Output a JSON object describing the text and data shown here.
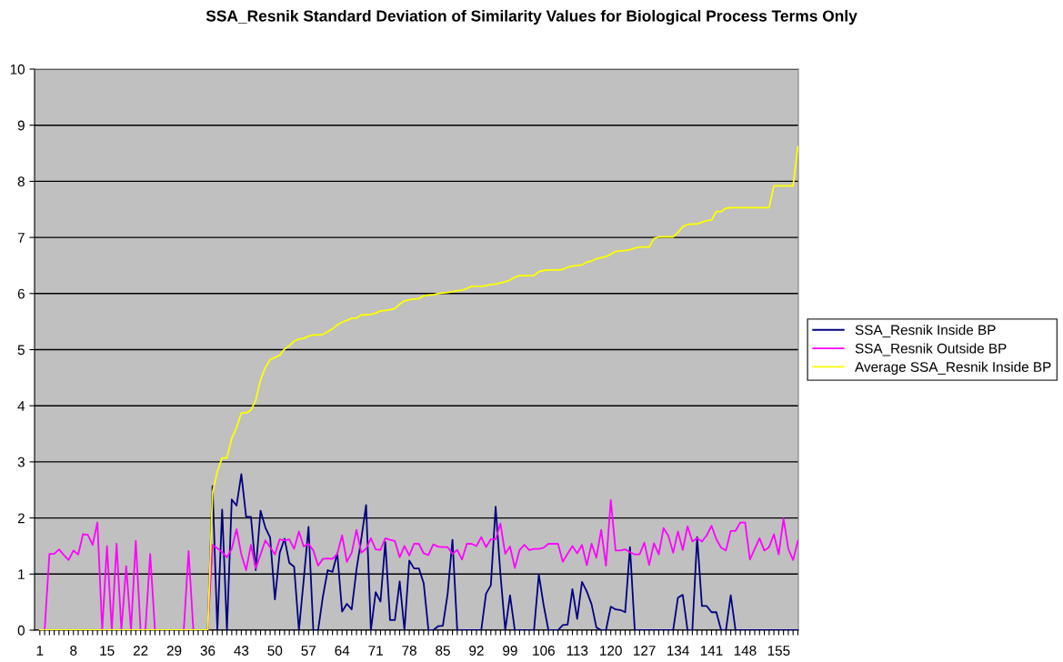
{
  "chart_data": {
    "type": "line",
    "title": "SSA_Resnik Standard Deviation of Similarity Values for Biological Process Terms Only",
    "categories": [
      "1",
      null,
      null,
      null,
      null,
      null,
      null,
      "8",
      null,
      null,
      null,
      null,
      null,
      null,
      "15",
      null,
      null,
      null,
      null,
      null,
      null,
      "22",
      null,
      null,
      null,
      null,
      null,
      null,
      "29",
      null,
      null,
      null,
      null,
      null,
      null,
      "36",
      null,
      null,
      null,
      null,
      null,
      null,
      "43",
      null,
      null,
      null,
      null,
      null,
      null,
      "50",
      null,
      null,
      null,
      null,
      null,
      null,
      "57",
      null,
      null,
      null,
      null,
      null,
      null,
      "64",
      null,
      null,
      null,
      null,
      null,
      null,
      "71",
      null,
      null,
      null,
      null,
      null,
      null,
      "78",
      null,
      null,
      null,
      null,
      null,
      null,
      "85",
      null,
      null,
      null,
      null,
      null,
      null,
      "92",
      null,
      null,
      null,
      null,
      null,
      null,
      "99",
      null,
      null,
      null,
      null,
      null,
      null,
      "106",
      null,
      null,
      null,
      null,
      null,
      null,
      "113",
      null,
      null,
      null,
      null,
      null,
      null,
      "120",
      null,
      null,
      null,
      null,
      null,
      null,
      "127",
      null,
      null,
      null,
      null,
      null,
      null,
      "134",
      null,
      null,
      null,
      null,
      null,
      null,
      "141",
      null,
      null,
      null,
      null,
      null,
      null,
      "148",
      null,
      null,
      null,
      null,
      null,
      null,
      "155",
      null,
      null,
      null,
      null
    ],
    "series": [
      {
        "name": "SSA_Resnik Inside BP",
        "color": "#000080",
        "values": [
          null,
          null,
          null,
          null,
          null,
          null,
          null,
          null,
          null,
          null,
          null,
          null,
          null,
          null,
          null,
          null,
          null,
          null,
          null,
          null,
          null,
          null,
          null,
          null,
          null,
          null,
          null,
          null,
          null,
          null,
          null,
          null,
          null,
          null,
          null,
          0,
          2.57,
          0,
          2.15,
          0,
          2.33,
          2.22,
          2.78,
          2.02,
          2.02,
          1.07,
          2.13,
          1.83,
          1.65,
          0.55,
          1.38,
          1.63,
          1.2,
          1.13,
          0,
          0.9,
          1.84,
          0,
          0,
          0.6,
          1.07,
          1.04,
          1.37,
          0.33,
          0.47,
          0.37,
          1.08,
          1.63,
          2.23,
          0,
          0.68,
          0.51,
          1.57,
          0.18,
          0.18,
          0.87,
          0,
          1.24,
          1.1,
          1.1,
          0.84,
          0,
          0,
          0.07,
          0.08,
          0.65,
          1.61,
          0,
          0,
          0,
          0,
          0,
          0,
          0.65,
          0.8,
          2.2,
          1.0,
          0,
          0.62,
          0,
          0,
          0,
          0,
          0,
          0.99,
          0.45,
          0,
          0,
          0,
          0.09,
          0.1,
          0.73,
          0.2,
          0.86,
          0.69,
          0.46,
          0.05,
          0,
          0,
          0.42,
          0.37,
          0.36,
          0.32,
          1.48,
          0,
          0,
          0,
          0,
          0,
          0,
          0,
          0,
          0,
          0.58,
          0.63,
          0,
          0,
          1.66,
          0.43,
          0.43,
          0.32,
          0.32,
          0,
          0,
          0.62,
          0,
          0,
          0,
          0,
          0,
          0,
          0,
          0,
          0,
          0,
          0,
          0,
          0,
          0
        ]
      },
      {
        "name": "SSA_Resnik Outside BP",
        "color": "#ff00ff",
        "values": [
          0,
          0,
          1.36,
          1.36,
          1.44,
          1.34,
          1.25,
          1.42,
          1.35,
          1.71,
          1.7,
          1.52,
          1.92,
          0,
          1.5,
          0,
          1.54,
          0,
          1.14,
          0,
          1.59,
          0,
          0,
          1.36,
          0,
          0,
          0,
          0,
          0,
          0,
          0,
          1.41,
          0,
          0,
          0,
          0,
          1.52,
          1.46,
          1.39,
          1.3,
          1.45,
          1.8,
          1.35,
          1.07,
          1.52,
          1.1,
          1.35,
          1.6,
          1.48,
          1.35,
          1.62,
          1.6,
          1.62,
          1.45,
          1.76,
          1.49,
          1.54,
          1.42,
          1.15,
          1.27,
          1.28,
          1.27,
          1.36,
          1.69,
          1.22,
          1.38,
          1.79,
          1.38,
          1.45,
          1.64,
          1.44,
          1.43,
          1.64,
          1.61,
          1.59,
          1.3,
          1.5,
          1.33,
          1.54,
          1.54,
          1.37,
          1.34,
          1.53,
          1.49,
          1.48,
          1.48,
          1.36,
          1.43,
          1.26,
          1.54,
          1.54,
          1.5,
          1.66,
          1.48,
          1.62,
          1.62,
          1.9,
          1.36,
          1.49,
          1.11,
          1.43,
          1.52,
          1.43,
          1.45,
          1.45,
          1.47,
          1.54,
          1.54,
          1.54,
          1.22,
          1.36,
          1.5,
          1.37,
          1.52,
          1.16,
          1.54,
          1.29,
          1.79,
          1.15,
          2.32,
          1.42,
          1.42,
          1.44,
          1.39,
          1.35,
          1.35,
          1.56,
          1.16,
          1.55,
          1.35,
          1.82,
          1.68,
          1.38,
          1.76,
          1.43,
          1.85,
          1.58,
          1.64,
          1.58,
          1.69,
          1.86,
          1.62,
          1.47,
          1.42,
          1.77,
          1.77,
          1.92,
          1.92,
          1.26,
          1.45,
          1.64,
          1.42,
          1.48,
          1.71,
          1.35,
          1.99,
          1.45,
          1.25,
          1.59
        ]
      },
      {
        "name": "Average SSA_Resnik Inside BP",
        "color": "#ffff00",
        "values": [
          0,
          0,
          0,
          0,
          0,
          0,
          0,
          0,
          0,
          0,
          0,
          0,
          0,
          0,
          0,
          0,
          0,
          0,
          0,
          0,
          0,
          0,
          0,
          0,
          0,
          0,
          0,
          0,
          0,
          0,
          0,
          0,
          0,
          0,
          0,
          0,
          2.45,
          2.83,
          3.07,
          3.07,
          3.42,
          3.61,
          3.87,
          3.87,
          3.92,
          4.1,
          4.46,
          4.68,
          4.82,
          4.86,
          4.9,
          5.01,
          5.07,
          5.15,
          5.19,
          5.2,
          5.24,
          5.26,
          5.26,
          5.27,
          5.32,
          5.37,
          5.44,
          5.49,
          5.52,
          5.56,
          5.56,
          5.62,
          5.62,
          5.63,
          5.65,
          5.69,
          5.7,
          5.71,
          5.73,
          5.81,
          5.87,
          5.89,
          5.9,
          5.91,
          5.96,
          5.97,
          5.98,
          6.0,
          6.01,
          6.02,
          6.03,
          6.05,
          6.06,
          6.09,
          6.13,
          6.13,
          6.13,
          6.14,
          6.16,
          6.17,
          6.19,
          6.21,
          6.24,
          6.29,
          6.32,
          6.32,
          6.32,
          6.32,
          6.39,
          6.41,
          6.42,
          6.42,
          6.42,
          6.43,
          6.47,
          6.49,
          6.5,
          6.51,
          6.56,
          6.58,
          6.62,
          6.64,
          6.66,
          6.7,
          6.75,
          6.76,
          6.77,
          6.78,
          6.81,
          6.83,
          6.83,
          6.83,
          6.98,
          7.01,
          7.01,
          7.01,
          7.01,
          7.09,
          7.19,
          7.23,
          7.24,
          7.24,
          7.27,
          7.3,
          7.31,
          7.46,
          7.46,
          7.52,
          7.53,
          7.53,
          7.53,
          7.53,
          7.53,
          7.53,
          7.53,
          7.53,
          7.53,
          7.92,
          7.92,
          7.92,
          7.92,
          7.92,
          8.62
        ]
      }
    ],
    "ylim": [
      0,
      10
    ],
    "yticks": [
      0,
      1,
      2,
      3,
      4,
      5,
      6,
      7,
      8,
      9,
      10
    ],
    "grid": "y",
    "legend": "right",
    "marker": "none",
    "line_style": "solid"
  }
}
